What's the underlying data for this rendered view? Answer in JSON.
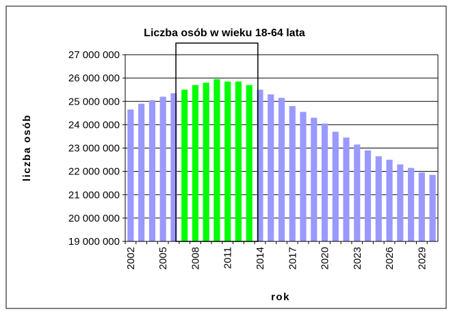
{
  "chart_data": {
    "type": "bar",
    "title": "Liczba osób w wieku 18-64 lata",
    "x_label": "rok",
    "y_label": "liczba osób",
    "categories": [
      "2002",
      null,
      null,
      "2005",
      null,
      null,
      "2008",
      null,
      null,
      "2011",
      null,
      null,
      "2014",
      null,
      null,
      "2017",
      null,
      null,
      "2020",
      null,
      null,
      "2023",
      null,
      null,
      "2026",
      null,
      null,
      "2029",
      null
    ],
    "values": [
      24650000,
      24900000,
      25050000,
      25200000,
      25350000,
      25500000,
      25700000,
      25800000,
      25950000,
      25850000,
      25850000,
      25700000,
      25500000,
      25300000,
      25150000,
      24800000,
      24550000,
      24300000,
      24050000,
      23700000,
      23450000,
      23150000,
      22900000,
      22650000,
      22500000,
      22300000,
      22150000,
      21950000,
      21850000
    ],
    "colors": [
      "#9999ff",
      "#9999ff",
      "#9999ff",
      "#9999ff",
      "#9999ff",
      "#00ff00",
      "#00ff00",
      "#00ff00",
      "#00ff00",
      "#00ff00",
      "#00ff00",
      "#00ff00",
      "#9999ff",
      "#9999ff",
      "#9999ff",
      "#9999ff",
      "#9999ff",
      "#9999ff",
      "#9999ff",
      "#9999ff",
      "#9999ff",
      "#9999ff",
      "#9999ff",
      "#9999ff",
      "#9999ff",
      "#9999ff",
      "#9999ff",
      "#9999ff",
      "#9999ff"
    ],
    "ylim": [
      19000000,
      27000000
    ],
    "yticks": [
      {
        "value": 19000000,
        "label": "19 000 000"
      },
      {
        "value": 20000000,
        "label": "20 000 000"
      },
      {
        "value": 21000000,
        "label": "21 000 000"
      },
      {
        "value": 22000000,
        "label": "22 000 000"
      },
      {
        "value": 23000000,
        "label": "23 000 000"
      },
      {
        "value": 24000000,
        "label": "24 000 000"
      },
      {
        "value": 25000000,
        "label": "25 000 000"
      },
      {
        "value": 26000000,
        "label": "26 000 000"
      },
      {
        "value": 27000000,
        "label": "27 000 000"
      }
    ],
    "grid": true
  }
}
